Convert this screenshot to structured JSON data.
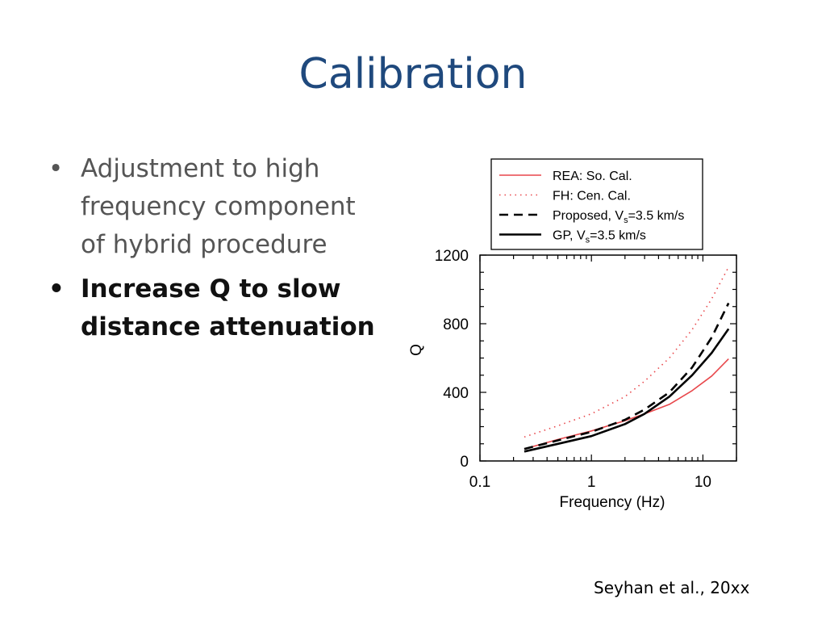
{
  "slide": {
    "title": "Calibration",
    "bullets": [
      "Adjustment to high frequency component of hybrid procedure",
      "Increase Q to slow distance attenuation"
    ],
    "citation": "Seyhan et al., 20xx"
  },
  "chart_data": {
    "type": "line",
    "xlabel": "Frequency (Hz)",
    "ylabel": "Q",
    "xscale": "log",
    "xlim": [
      0.1,
      20
    ],
    "ylim": [
      0,
      1200
    ],
    "xticks": [
      0.1,
      1,
      10
    ],
    "xtick_labels": [
      "0.1",
      "1",
      "10"
    ],
    "yticks": [
      0,
      400,
      800,
      1200
    ],
    "ytick_labels": [
      "0",
      "400",
      "800",
      "1200"
    ],
    "grid": false,
    "legend": "top-right-outside",
    "series": [
      {
        "name": "REA: So. Cal.",
        "style": "solid",
        "color": "#e8474b",
        "x": [
          0.25,
          0.5,
          1,
          2,
          3,
          5,
          8,
          12,
          17
        ],
        "y": [
          70,
          125,
          175,
          235,
          275,
          330,
          410,
          495,
          595
        ]
      },
      {
        "name": "FH: Cen. Cal.",
        "style": "dotted",
        "color": "#e8474b",
        "x": [
          0.25,
          0.5,
          1,
          2,
          3,
          5,
          8,
          12,
          17
        ],
        "y": [
          140,
          205,
          275,
          375,
          465,
          600,
          765,
          945,
          1130
        ]
      },
      {
        "name": "Proposed, Vs=3.5 km/s",
        "name_main": "Proposed, V",
        "name_sub": "s",
        "name_tail": "=3.5 km/s",
        "style": "dashed",
        "color": "#000000",
        "x": [
          0.25,
          0.5,
          1,
          2,
          3,
          5,
          8,
          12,
          17
        ],
        "y": [
          70,
          120,
          170,
          240,
          300,
          400,
          545,
          720,
          920
        ]
      },
      {
        "name": "GP, Vs=3.5 km/s",
        "name_main": "GP, V",
        "name_sub": "s",
        "name_tail": "=3.5 km/s",
        "style": "solid",
        "color": "#000000",
        "x": [
          0.25,
          0.5,
          1,
          2,
          3,
          5,
          8,
          12,
          17
        ],
        "y": [
          55,
          100,
          145,
          215,
          275,
          375,
          500,
          630,
          770
        ]
      }
    ]
  }
}
